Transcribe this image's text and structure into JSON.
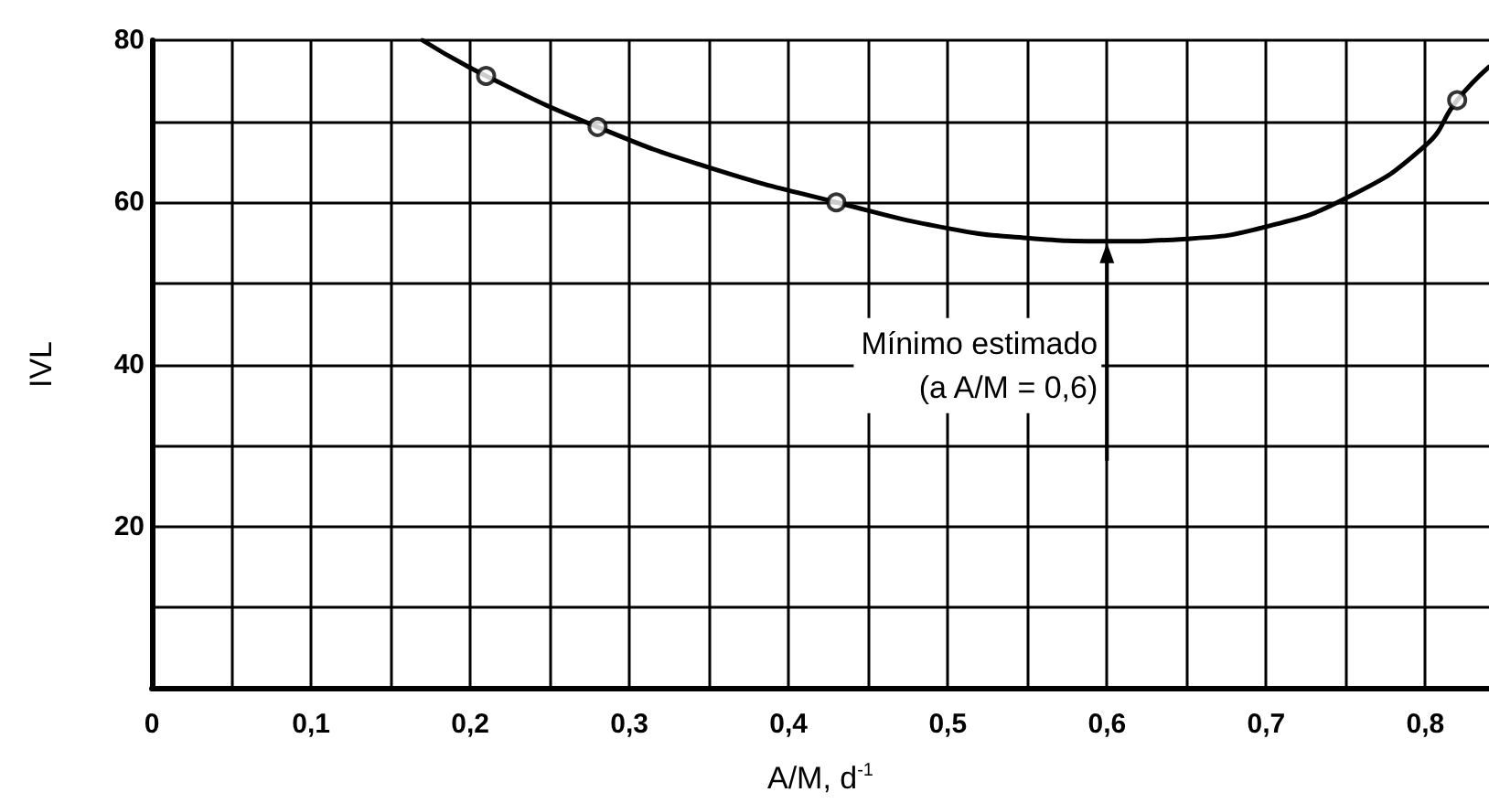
{
  "chart_data": {
    "type": "scatter",
    "xlabel": "A/M, d$^{-1}$",
    "ylabel": "IVL",
    "series": [
      {
        "color": "#000000",
        "marker": "circle",
        "x": [
          0.21,
          0.28,
          0.43,
          0.82
        ],
        "values": [
          75.6,
          69.3,
          60,
          72.6
        ]
      },
      {
        "type": "line",
        "color": "#000000",
        "marker": "none",
        "x": [
          0.17,
          0.21,
          0.28,
          0.35,
          0.43,
          0.5,
          0.55,
          0.6,
          0.65,
          0.7,
          0.75,
          0.8,
          0.82,
          0.84
        ],
        "values": [
          80,
          75.6,
          69.3,
          64.3,
          60,
          56.8,
          55.6,
          55.2,
          55.5,
          57,
          60.5,
          67,
          72.6,
          76.7
        ]
      }
    ],
    "xlim": [
      0,
      0.84
    ],
    "xticks": [
      {
        "value": 0,
        "label": "0"
      },
      {
        "value": 0.05,
        "label": null
      },
      {
        "value": 0.1,
        "label": "0,1"
      },
      {
        "value": 0.15,
        "label": null
      },
      {
        "value": 0.2,
        "label": "0,2"
      },
      {
        "value": 0.25,
        "label": null
      },
      {
        "value": 0.3,
        "label": "0,3"
      },
      {
        "value": 0.35,
        "label": null
      },
      {
        "value": 0.4,
        "label": "0,4"
      },
      {
        "value": 0.45,
        "label": null
      },
      {
        "value": 0.5,
        "label": "0,5"
      },
      {
        "value": 0.55,
        "label": null
      },
      {
        "value": 0.6,
        "label": "0,6"
      },
      {
        "value": 0.65,
        "label": null
      },
      {
        "value": 0.7,
        "label": "0,7"
      },
      {
        "value": 0.75,
        "label": null
      },
      {
        "value": 0.8,
        "label": "0,8"
      }
    ],
    "ylim": [
      0,
      80
    ],
    "yticks": [
      {
        "value": 10,
        "label": null
      },
      20,
      {
        "value": 30,
        "label": null
      },
      40,
      {
        "value": 50,
        "label": null
      },
      60,
      {
        "value": 70,
        "label": null
      },
      80
    ],
    "grid": true,
    "annotations": [
      {
        "text": "Mínimo estimado\n(a A/M = 0,6)",
        "x": 0.6,
        "y": 55.2
      }
    ]
  }
}
